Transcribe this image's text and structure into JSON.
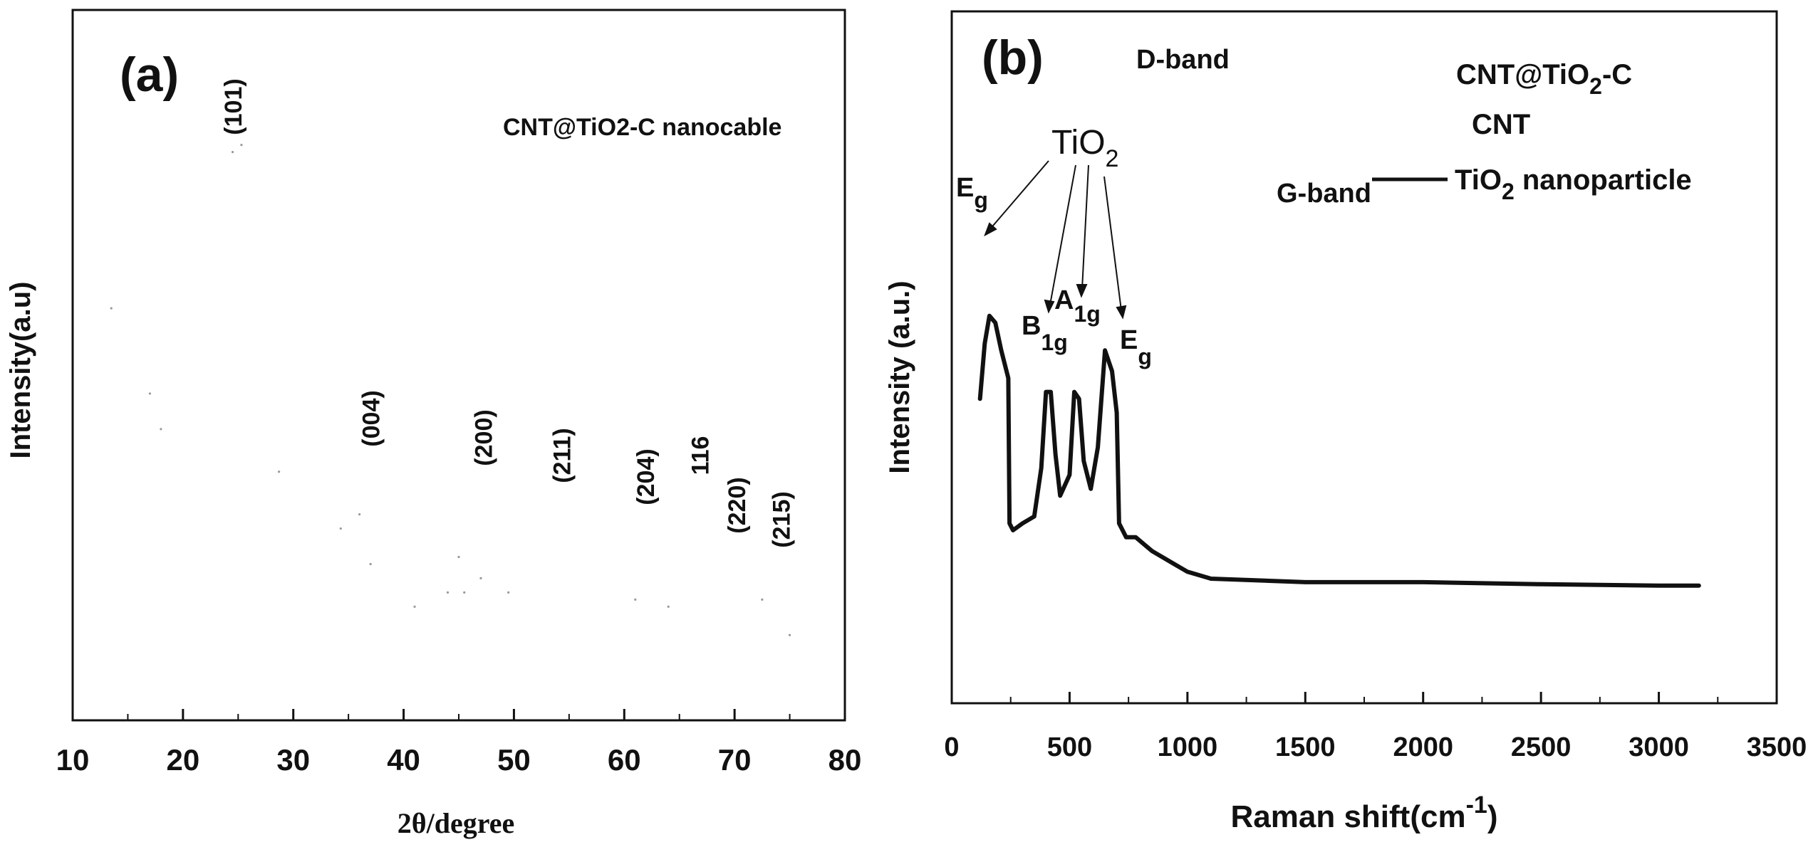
{
  "figure": {
    "panel_a_label": "(a)",
    "panel_b_label": "(b)"
  },
  "chart_data": [
    {
      "type": "line",
      "panel": "(a)",
      "title": "",
      "xlabel": "2θ/degree",
      "ylabel": "Intensity(a.u)",
      "xlim": [
        10,
        80
      ],
      "xticks": [
        10,
        20,
        30,
        40,
        50,
        60,
        70,
        80
      ],
      "xtick_labels": [
        "10",
        "20",
        "30",
        "40",
        "50",
        "60",
        "70",
        "80"
      ],
      "yticks_shown": false,
      "grid": false,
      "legend_position": "top-right",
      "legend": [
        "CNT@TiO2-C nanocable"
      ],
      "annotations": [
        {
          "text": "(101)",
          "x": 25.3
        },
        {
          "text": "(004)",
          "x": 37.8
        },
        {
          "text": "(200)",
          "x": 48.0
        },
        {
          "text": "(211)",
          "x": 55.1
        },
        {
          "text": "(204)",
          "x": 62.7
        },
        {
          "text": "116",
          "x": 68.8
        },
        {
          "text": "(220)",
          "x": 70.3
        },
        {
          "text": "(215)",
          "x": 75.0
        }
      ],
      "series": [
        {
          "name": "CNT@TiO2-C nanocable",
          "points": [
            [
              13.5,
              0.58
            ],
            [
              17.0,
              0.46
            ],
            [
              18.0,
              0.41
            ],
            [
              24.5,
              0.8
            ],
            [
              25.3,
              0.81
            ],
            [
              28.7,
              0.35
            ],
            [
              34.3,
              0.27
            ],
            [
              36.0,
              0.29
            ],
            [
              37.0,
              0.22
            ],
            [
              41.0,
              0.16
            ],
            [
              44.0,
              0.18
            ],
            [
              45.0,
              0.23
            ],
            [
              45.5,
              0.18
            ],
            [
              47.0,
              0.2
            ],
            [
              49.5,
              0.18
            ],
            [
              61.0,
              0.17
            ],
            [
              64.0,
              0.16
            ],
            [
              72.5,
              0.17
            ],
            [
              75.0,
              0.12
            ]
          ]
        }
      ]
    },
    {
      "type": "line",
      "panel": "(b)",
      "title": "",
      "xlabel": "Raman shift(cm",
      "xlabel_superscript": "-1",
      "xlabel_suffix": ")",
      "ylabel": "Intensity (a.u.)",
      "xlim": [
        0,
        3500
      ],
      "xticks": [
        0,
        500,
        1000,
        1500,
        2000,
        2500,
        3000,
        3500
      ],
      "xtick_labels": [
        "0",
        "500",
        "1000",
        "1500",
        "2000",
        "2500",
        "3000",
        "3500"
      ],
      "yticks_shown": false,
      "grid": false,
      "legend_position": "top-right",
      "legend": [
        {
          "text": "CNT@TiO",
          "sub": "2",
          "suffix": "-C"
        },
        {
          "text": "CNT"
        },
        {
          "text": "TiO",
          "sub": "2",
          "suffix": " nanoparticle"
        }
      ],
      "annotations": {
        "d_band": "D-band",
        "g_band": "G-band",
        "tio2": {
          "text": "TiO",
          "sub": "2"
        },
        "modes": [
          {
            "text": "E",
            "sub": "g",
            "x": 150
          },
          {
            "text": "B",
            "sub": "1g",
            "x": 400
          },
          {
            "text": "A",
            "sub": "1g",
            "x": 515
          },
          {
            "text": "E",
            "sub": "g",
            "x": 640
          }
        ]
      },
      "series": [
        {
          "name": "TiO2 nanoparticle",
          "points": [
            [
              120,
              0.44
            ],
            [
              140,
              0.52
            ],
            [
              160,
              0.56
            ],
            [
              185,
              0.55
            ],
            [
              210,
              0.51
            ],
            [
              240,
              0.47
            ],
            [
              245,
              0.26
            ],
            [
              260,
              0.25
            ],
            [
              300,
              0.26
            ],
            [
              350,
              0.27
            ],
            [
              380,
              0.34
            ],
            [
              400,
              0.45
            ],
            [
              420,
              0.45
            ],
            [
              440,
              0.36
            ],
            [
              460,
              0.3
            ],
            [
              500,
              0.33
            ],
            [
              520,
              0.45
            ],
            [
              540,
              0.44
            ],
            [
              560,
              0.35
            ],
            [
              590,
              0.31
            ],
            [
              620,
              0.37
            ],
            [
              650,
              0.51
            ],
            [
              680,
              0.48
            ],
            [
              700,
              0.42
            ],
            [
              710,
              0.26
            ],
            [
              740,
              0.24
            ],
            [
              780,
              0.24
            ],
            [
              850,
              0.22
            ],
            [
              950,
              0.2
            ],
            [
              1000,
              0.19
            ],
            [
              1100,
              0.18
            ],
            [
              1500,
              0.175
            ],
            [
              2000,
              0.175
            ],
            [
              2500,
              0.172
            ],
            [
              3000,
              0.17
            ],
            [
              3170,
              0.17
            ]
          ]
        }
      ]
    }
  ]
}
